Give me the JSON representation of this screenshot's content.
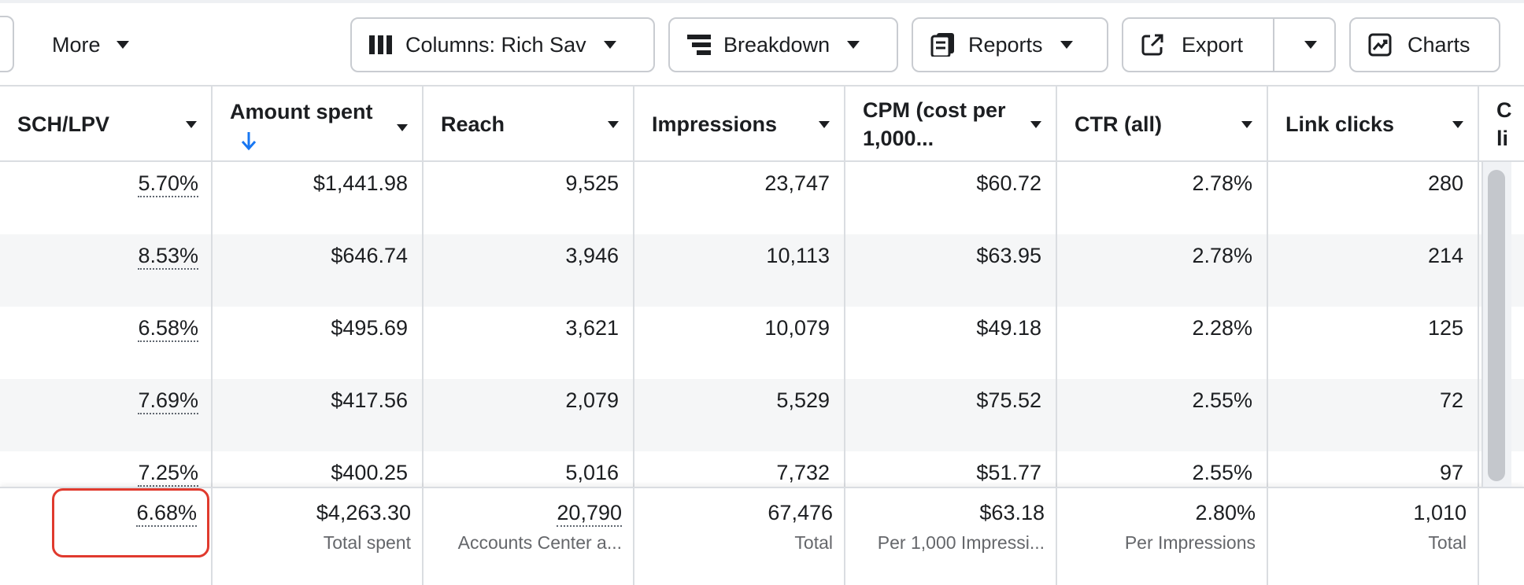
{
  "toolbar": {
    "more_label": "More",
    "columns_label": "Columns: Rich Sav",
    "breakdown_label": "Breakdown",
    "reports_label": "Reports",
    "export_label": "Export",
    "charts_label": "Charts"
  },
  "table": {
    "headers": [
      {
        "label": "SCH/LPV"
      },
      {
        "label": "Amount spent",
        "sorted": "descending"
      },
      {
        "label": "Reach"
      },
      {
        "label": "Impressions"
      },
      {
        "label": "CPM (cost per 1,000..."
      },
      {
        "label": "CTR (all)"
      },
      {
        "label": "Link clicks"
      },
      {
        "label": "C li"
      }
    ],
    "rows": [
      [
        "5.70%",
        "$1,441.98",
        "9,525",
        "23,747",
        "$60.72",
        "2.78%",
        "280"
      ],
      [
        "8.53%",
        "$646.74",
        "3,946",
        "10,113",
        "$63.95",
        "2.78%",
        "214"
      ],
      [
        "6.58%",
        "$495.69",
        "3,621",
        "10,079",
        "$49.18",
        "2.28%",
        "125"
      ],
      [
        "7.69%",
        "$417.56",
        "2,079",
        "5,529",
        "$75.52",
        "2.55%",
        "72"
      ],
      [
        "7.25%",
        "$400.25",
        "5,016",
        "7,732",
        "$51.77",
        "2.55%",
        "97"
      ]
    ],
    "totals": [
      {
        "value": "6.68%",
        "sub": ""
      },
      {
        "value": "$4,263.30",
        "sub": "Total spent"
      },
      {
        "value": "20,790",
        "sub": "Accounts Center a..."
      },
      {
        "value": "67,476",
        "sub": "Total"
      },
      {
        "value": "$63.18",
        "sub": "Per 1,000 Impressi..."
      },
      {
        "value": "2.80%",
        "sub": "Per Impressions"
      },
      {
        "value": "1,010",
        "sub": "Total"
      }
    ]
  },
  "colors": {
    "accent_blue": "#1877f2",
    "highlight_red": "#e03a2e",
    "border": "#dadde1"
  }
}
